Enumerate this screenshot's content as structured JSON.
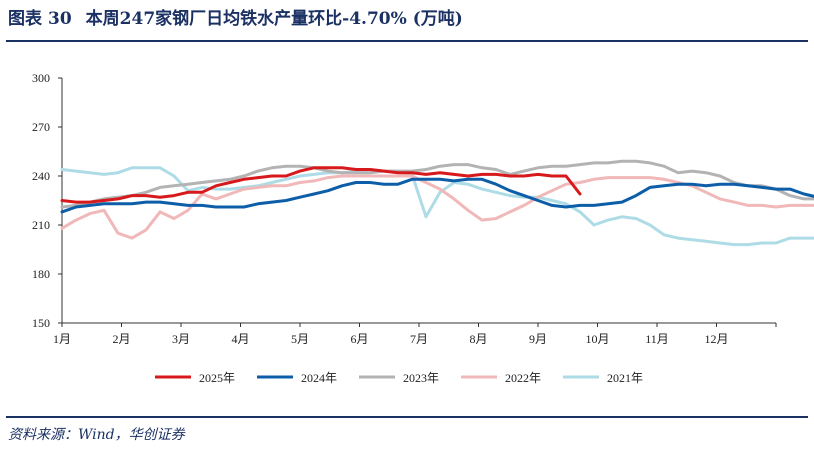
{
  "header": {
    "figure_label": "图表",
    "figure_number": "30",
    "title": "本周247家钢厂日均铁水产量环比-4.70% (万吨)"
  },
  "footer": {
    "source": "资料来源：Wind，华创证券"
  },
  "colors": {
    "s2025": "#d7191c",
    "s2024": "#0d5ea8",
    "s2023": "#b3b3b3",
    "s2022": "#f0b8b8",
    "s2021": "#aedce6",
    "axis": "#333333",
    "title": "#1b3163"
  },
  "chart_data": {
    "type": "line",
    "title": "本周247家钢厂日均铁水产量环比-4.70% (万吨)",
    "xlabel": "",
    "ylabel": "",
    "x_unit": "week",
    "xlim": [
      1,
      52
    ],
    "ylim": [
      150,
      300
    ],
    "yticks": [
      150,
      180,
      210,
      240,
      270,
      300
    ],
    "month_labels": [
      "1月",
      "2月",
      "3月",
      "4月",
      "5月",
      "6月",
      "7月",
      "8月",
      "9月",
      "10月",
      "11月",
      "12月"
    ],
    "grid": false,
    "legend_position": "bottom",
    "series": [
      {
        "name": "2025年",
        "color": "#d7191c",
        "width": 3,
        "values": [
          225,
          224,
          224,
          225,
          226,
          228,
          228,
          227,
          228,
          230,
          230,
          234,
          236,
          238,
          239,
          240,
          240,
          243,
          245,
          245,
          245,
          244,
          244,
          243,
          242,
          242,
          241,
          242,
          241,
          240,
          241,
          241,
          240,
          240,
          241,
          240,
          240,
          229
        ]
      },
      {
        "name": "2024年",
        "color": "#0d5ea8",
        "width": 3,
        "values": [
          218,
          221,
          222,
          223,
          223,
          223,
          224,
          224,
          223,
          222,
          222,
          221,
          221,
          221,
          223,
          224,
          225,
          227,
          229,
          231,
          234,
          236,
          236,
          235,
          235,
          238,
          238,
          238,
          237,
          238,
          238,
          235,
          231,
          228,
          225,
          222,
          221,
          222,
          222,
          223,
          224,
          228,
          233,
          234,
          235,
          235,
          234,
          235,
          235,
          234,
          233,
          232,
          232,
          229,
          227
        ]
      },
      {
        "name": "2023年",
        "color": "#b3b3b3",
        "width": 3,
        "values": [
          221,
          222,
          224,
          226,
          227,
          228,
          230,
          233,
          234,
          235,
          236,
          237,
          238,
          240,
          243,
          245,
          246,
          246,
          245,
          243,
          242,
          242,
          242,
          243,
          243,
          243,
          244,
          246,
          247,
          247,
          245,
          244,
          241,
          243,
          245,
          246,
          246,
          247,
          248,
          248,
          249,
          249,
          248,
          246,
          242,
          243,
          242,
          240,
          236,
          234,
          234,
          232,
          228,
          226,
          226,
          221
        ]
      },
      {
        "name": "2022年",
        "color": "#f0b8b8",
        "width": 3,
        "values": [
          208,
          213,
          217,
          219,
          205,
          202,
          207,
          218,
          214,
          219,
          229,
          226,
          229,
          232,
          233,
          234,
          234,
          236,
          237,
          239,
          240,
          240,
          240,
          240,
          240,
          240,
          236,
          232,
          226,
          219,
          213,
          214,
          218,
          222,
          227,
          231,
          235,
          236,
          238,
          239,
          239,
          239,
          239,
          238,
          236,
          234,
          230,
          226,
          224,
          222,
          222,
          221,
          222,
          222,
          222,
          222
        ]
      },
      {
        "name": "2021年",
        "color": "#aedce6",
        "width": 3,
        "values": [
          244,
          243,
          242,
          241,
          242,
          245,
          245,
          245,
          240,
          231,
          233,
          232,
          232,
          233,
          234,
          236,
          238,
          240,
          241,
          242,
          242,
          243,
          244,
          243,
          243,
          241,
          215,
          230,
          236,
          235,
          232,
          230,
          228,
          227,
          227,
          225,
          223,
          218,
          210,
          213,
          215,
          214,
          210,
          204,
          202,
          201,
          200,
          199,
          198,
          198,
          199,
          199,
          202,
          202,
          202,
          202
        ]
      }
    ]
  }
}
